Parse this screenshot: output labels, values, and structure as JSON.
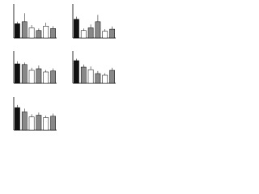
{
  "chart_data": [
    {
      "type": "bar",
      "categories": [
        null,
        null,
        null,
        null,
        null,
        null
      ],
      "values": [
        42,
        48,
        30,
        22,
        35,
        28
      ],
      "errors": [
        6,
        25,
        8,
        6,
        10,
        7
      ],
      "colors": [
        "#111111",
        "#888888",
        "#ffffff",
        "#888888",
        "#ffffff",
        "#888888"
      ],
      "ylim": [
        0,
        100
      ]
    },
    {
      "type": "bar",
      "categories": [
        null,
        null,
        null,
        null,
        null,
        null
      ],
      "values": [
        55,
        22,
        30,
        48,
        20,
        26
      ],
      "errors": [
        8,
        6,
        10,
        20,
        6,
        8
      ],
      "colors": [
        "#111111",
        "#ffffff",
        "#888888",
        "#888888",
        "#ffffff",
        "#888888"
      ],
      "ylim": [
        0,
        100
      ]
    },
    {
      "type": "bar",
      "categories": [
        null,
        null,
        null,
        null,
        null,
        null
      ],
      "values": [
        60,
        58,
        40,
        45,
        35,
        38
      ],
      "errors": [
        8,
        6,
        8,
        10,
        6,
        8
      ],
      "colors": [
        "#111111",
        "#888888",
        "#ffffff",
        "#888888",
        "#ffffff",
        "#888888"
      ],
      "ylim": [
        0,
        100
      ]
    },
    {
      "type": "bar",
      "categories": [
        null,
        null,
        null,
        null,
        null,
        null
      ],
      "values": [
        70,
        50,
        42,
        30,
        25,
        40
      ],
      "errors": [
        6,
        8,
        10,
        8,
        6,
        8
      ],
      "colors": [
        "#111111",
        "#888888",
        "#ffffff",
        "#888888",
        "#ffffff",
        "#888888"
      ],
      "ylim": [
        0,
        100
      ]
    },
    {
      "type": "bar",
      "categories": [
        null,
        null,
        null,
        null,
        null,
        null
      ],
      "values": [
        68,
        55,
        40,
        45,
        38,
        42
      ],
      "errors": [
        8,
        10,
        8,
        8,
        6,
        8
      ],
      "colors": [
        "#111111",
        "#888888",
        "#ffffff",
        "#888888",
        "#ffffff",
        "#888888"
      ],
      "ylim": [
        0,
        100
      ]
    }
  ]
}
